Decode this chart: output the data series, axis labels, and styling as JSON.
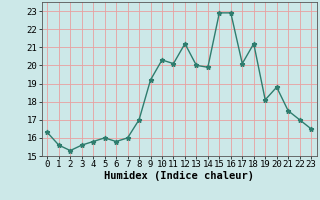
{
  "title": "",
  "xlabel": "Humidex (Indice chaleur)",
  "x": [
    0,
    1,
    2,
    3,
    4,
    5,
    6,
    7,
    8,
    9,
    10,
    11,
    12,
    13,
    14,
    15,
    16,
    17,
    18,
    19,
    20,
    21,
    22,
    23
  ],
  "y": [
    16.3,
    15.6,
    15.3,
    15.6,
    15.8,
    16.0,
    15.8,
    16.0,
    17.0,
    19.2,
    20.3,
    20.1,
    21.2,
    20.0,
    19.9,
    22.9,
    22.9,
    20.1,
    21.2,
    18.1,
    18.8,
    17.5,
    17.0,
    16.5
  ],
  "line_color": "#2e7d6e",
  "marker": "*",
  "marker_size": 3.5,
  "bg_color": "#cce8e8",
  "grid_color": "#e8a0a0",
  "ylim": [
    15,
    23.5
  ],
  "xlim": [
    -0.5,
    23.5
  ],
  "yticks": [
    15,
    16,
    17,
    18,
    19,
    20,
    21,
    22,
    23
  ],
  "xticks": [
    0,
    1,
    2,
    3,
    4,
    5,
    6,
    7,
    8,
    9,
    10,
    11,
    12,
    13,
    14,
    15,
    16,
    17,
    18,
    19,
    20,
    21,
    22,
    23
  ],
  "xlabel_fontsize": 7.5,
  "tick_fontsize": 6.5,
  "linewidth": 1.0
}
